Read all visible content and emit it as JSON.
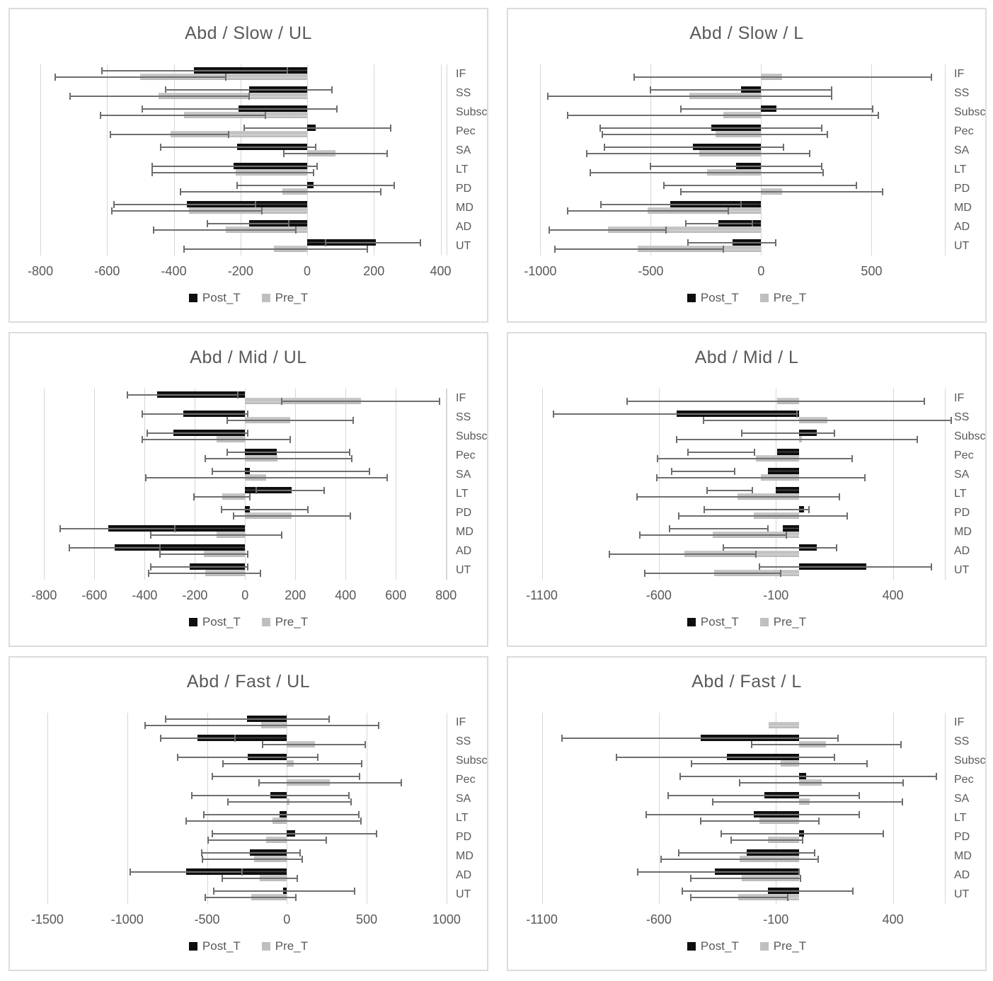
{
  "legend": {
    "post_label": "Post_T",
    "pre_label": "Pre_T"
  },
  "colors": {
    "post": "#0e0e0e",
    "pre": "#bfbfbf",
    "whisker": "#6e6e6e",
    "grid": "#d6d6d6",
    "text": "#595959",
    "panel_border": "#dcdcdc"
  },
  "categories": [
    "IF",
    "SS",
    "Subsc",
    "Pec",
    "SA",
    "LT",
    "PD",
    "MD",
    "AD",
    "UT"
  ],
  "chart_data": [
    {
      "type": "bar",
      "orientation": "horizontal",
      "title": "Abd / Slow / UL",
      "xlim": [
        -815,
        420
      ],
      "ticks": [
        -800,
        -600,
        -400,
        -200,
        0,
        200,
        400
      ],
      "tick_labels": [
        "-800",
        "-600",
        "-400",
        "-200",
        "0",
        "200",
        "400"
      ],
      "legend_position": "bottom",
      "grid": true,
      "series": [
        {
          "name": "Post_T",
          "values": [
            -340,
            -175,
            -205,
            25,
            -210,
            -220,
            20,
            -360,
            -175,
            205
          ],
          "err": [
            [
              -615,
              -60
            ],
            [
              -425,
              75
            ],
            [
              -495,
              90
            ],
            [
              -190,
              250
            ],
            [
              -440,
              25
            ],
            [
              -465,
              30
            ],
            [
              -210,
              260
            ],
            [
              -580,
              -155
            ],
            [
              -300,
              -55
            ],
            [
              55,
              340
            ]
          ]
        },
        {
          "name": "Pre_T",
          "values": [
            -500,
            -445,
            -370,
            -410,
            85,
            -215,
            -75,
            -355,
            -245,
            -100
          ],
          "err": [
            [
              -755,
              -245
            ],
            [
              -710,
              -175
            ],
            [
              -620,
              -125
            ],
            [
              -590,
              -235
            ],
            [
              -70,
              240
            ],
            [
              -465,
              20
            ],
            [
              -380,
              220
            ],
            [
              -585,
              -135
            ],
            [
              -460,
              -35
            ],
            [
              -370,
              180
            ]
          ]
        }
      ]
    },
    {
      "type": "bar",
      "orientation": "horizontal",
      "title": "Abd / Slow / L",
      "xlim": [
        -1030,
        835
      ],
      "ticks": [
        -1000,
        -500,
        0,
        500
      ],
      "tick_labels": [
        "-1000",
        "-500",
        "0",
        "500"
      ],
      "legend_position": "bottom",
      "grid": true,
      "series": [
        {
          "name": "Post_T",
          "values": [
            0,
            -90,
            70,
            -225,
            -310,
            -115,
            0,
            -410,
            -195,
            -130
          ],
          "err": [
            null,
            [
              -500,
              320
            ],
            [
              -365,
              505
            ],
            [
              -730,
              275
            ],
            [
              -710,
              100
            ],
            [
              -500,
              275
            ],
            [
              -440,
              430
            ],
            [
              -725,
              -90
            ],
            [
              -340,
              -40
            ],
            [
              -330,
              65
            ]
          ]
        },
        {
          "name": "Pre_T",
          "values": [
            95,
            -325,
            -170,
            -205,
            -280,
            -245,
            95,
            -515,
            -695,
            -560
          ],
          "err": [
            [
              -575,
              770
            ],
            [
              -965,
              320
            ],
            [
              -875,
              530
            ],
            [
              -720,
              300
            ],
            [
              -790,
              220
            ],
            [
              -775,
              280
            ],
            [
              -365,
              550
            ],
            [
              -875,
              -150
            ],
            [
              -960,
              -430
            ],
            [
              -935,
              -170
            ]
          ]
        }
      ]
    },
    {
      "type": "bar",
      "orientation": "horizontal",
      "title": "Abd / Mid / UL",
      "xlim": [
        -835,
        805
      ],
      "ticks": [
        -800,
        -600,
        -400,
        -200,
        0,
        200,
        400,
        600,
        800
      ],
      "tick_labels": [
        "-800",
        "-600",
        "-400",
        "-200",
        "0",
        "200",
        "400",
        "600",
        "800"
      ],
      "legend_position": "bottom",
      "grid": true,
      "series": [
        {
          "name": "Post_T",
          "values": [
            -350,
            -245,
            -285,
            125,
            20,
            185,
            20,
            -545,
            -520,
            -220
          ],
          "err": [
            [
              -470,
              -30
            ],
            [
              -410,
              10
            ],
            [
              -390,
              10
            ],
            [
              -70,
              415
            ],
            [
              -130,
              495
            ],
            [
              45,
              315
            ],
            [
              -95,
              250
            ],
            [
              -735,
              -280
            ],
            [
              -700,
              -340
            ],
            [
              -375,
              10
            ]
          ]
        },
        {
          "name": "Pre_T",
          "values": [
            460,
            180,
            -115,
            130,
            85,
            -90,
            185,
            -115,
            -165,
            -160
          ],
          "err": [
            [
              145,
              775
            ],
            [
              -70,
              430
            ],
            [
              -410,
              180
            ],
            [
              -160,
              425
            ],
            [
              -395,
              565
            ],
            [
              -205,
              20
            ],
            [
              -45,
              420
            ],
            [
              -375,
              145
            ],
            [
              -340,
              10
            ],
            [
              -385,
              60
            ]
          ]
        }
      ]
    },
    {
      "type": "bar",
      "orientation": "horizontal",
      "title": "Abd / Mid / L",
      "xlim": [
        -1135,
        625
      ],
      "ticks": [
        -1100,
        -600,
        -100,
        400
      ],
      "tick_labels": [
        "-1100",
        "-600",
        "-100",
        "400"
      ],
      "legend_position": "bottom",
      "grid": true,
      "series": [
        {
          "name": "Post_T",
          "values": [
            0,
            -525,
            75,
            -95,
            -135,
            -100,
            20,
            -70,
            75,
            285
          ],
          "err": [
            null,
            [
              -1050,
              -10
            ],
            [
              -245,
              150
            ],
            [
              -475,
              -190
            ],
            [
              -545,
              -275
            ],
            [
              -395,
              -200
            ],
            [
              -405,
              40
            ],
            [
              -555,
              -135
            ],
            [
              -325,
              160
            ],
            [
              -170,
              565
            ]
          ]
        },
        {
          "name": "Pre_T",
          "values": [
            -95,
            120,
            10,
            -185,
            -165,
            -265,
            -195,
            -370,
            -490,
            -365
          ],
          "err": [
            [
              -735,
              535
            ],
            [
              -410,
              650
            ],
            [
              -525,
              505
            ],
            [
              -605,
              225
            ],
            [
              -610,
              280
            ],
            [
              -695,
              170
            ],
            [
              -515,
              205
            ],
            [
              -680,
              -55
            ],
            [
              -810,
              -185
            ],
            [
              -660,
              -80
            ]
          ]
        }
      ]
    },
    {
      "type": "bar",
      "orientation": "horizontal",
      "title": "Abd / Fast / UL",
      "xlim": [
        -1575,
        1005
      ],
      "ticks": [
        -1500,
        -1000,
        -500,
        0,
        500,
        1000
      ],
      "tick_labels": [
        "-1500",
        "-1000",
        "-500",
        "0",
        "500",
        "1000"
      ],
      "legend_position": "bottom",
      "grid": true,
      "series": [
        {
          "name": "Post_T",
          "values": [
            -250,
            -560,
            -245,
            0,
            -105,
            -45,
            50,
            -230,
            -630,
            -25
          ],
          "err": [
            [
              -760,
              265
            ],
            [
              -790,
              -325
            ],
            [
              -685,
              195
            ],
            [
              -465,
              455
            ],
            [
              -595,
              390
            ],
            [
              -520,
              450
            ],
            [
              -465,
              560
            ],
            [
              -535,
              85
            ],
            [
              -980,
              -280
            ],
            [
              -460,
              425
            ]
          ]
        },
        {
          "name": "Pre_T",
          "values": [
            -160,
            175,
            45,
            270,
            15,
            -90,
            -130,
            -205,
            -170,
            -225
          ],
          "err": [
            [
              -890,
              575
            ],
            [
              -150,
              490
            ],
            [
              -400,
              470
            ],
            [
              -175,
              715
            ],
            [
              -370,
              400
            ],
            [
              -630,
              465
            ],
            [
              -495,
              245
            ],
            [
              -530,
              95
            ],
            [
              -405,
              65
            ],
            [
              -510,
              55
            ]
          ]
        }
      ]
    },
    {
      "type": "bar",
      "orientation": "horizontal",
      "title": "Abd / Fast / L",
      "xlim": [
        -1135,
        625
      ],
      "ticks": [
        -1100,
        -600,
        -100,
        400
      ],
      "tick_labels": [
        "-1100",
        "-600",
        "-100",
        "400"
      ],
      "legend_position": "bottom",
      "grid": true,
      "series": [
        {
          "name": "Post_T",
          "values": [
            0,
            -420,
            -310,
            30,
            -150,
            -195,
            20,
            -225,
            -360,
            -135
          ],
          "err": [
            null,
            [
              -1015,
              165
            ],
            [
              -780,
              150
            ],
            [
              -510,
              585
            ],
            [
              -560,
              255
            ],
            [
              -655,
              255
            ],
            [
              -335,
              360
            ],
            [
              -515,
              65
            ],
            [
              -690,
              0
            ],
            [
              -500,
              230
            ]
          ]
        },
        {
          "name": "Pre_T",
          "values": [
            -130,
            115,
            -80,
            95,
            45,
            -170,
            -135,
            -255,
            -245,
            -260
          ],
          "err": [
            null,
            [
              -205,
              435
            ],
            [
              -460,
              290
            ],
            [
              -255,
              445
            ],
            [
              -370,
              440
            ],
            [
              -420,
              85
            ],
            [
              -290,
              15
            ],
            [
              -590,
              80
            ],
            [
              -465,
              5
            ],
            [
              -465,
              -50
            ]
          ]
        }
      ]
    }
  ]
}
